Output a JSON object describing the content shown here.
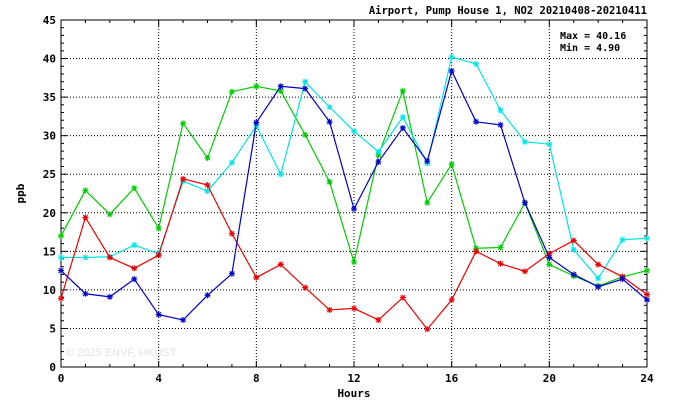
{
  "chart_data": {
    "type": "line",
    "title": "Airport, Pump House 1, NO2 20210408-20210411",
    "xlabel": "Hours",
    "ylabel": "ppb",
    "xlim": [
      0,
      24
    ],
    "ylim": [
      0,
      45
    ],
    "xticks": [
      0,
      4,
      8,
      12,
      16,
      20,
      24
    ],
    "yticks": [
      0,
      5,
      10,
      15,
      20,
      25,
      30,
      35,
      40,
      45
    ],
    "grid": true,
    "stats": {
      "max": "Max = 40.16",
      "min": "Min =  4.90"
    },
    "watermark": "© 2025  ENVF, HKUST",
    "series": [
      {
        "color": "#00cc00",
        "x": [
          0,
          1,
          2,
          3,
          4,
          5,
          6,
          7,
          8,
          9,
          10,
          11,
          12,
          13,
          14,
          15,
          16,
          17,
          18,
          19,
          20,
          21,
          22,
          23,
          24
        ],
        "values": [
          17.0,
          22.9,
          19.8,
          23.2,
          18.0,
          31.6,
          27.1,
          35.7,
          36.4,
          35.8,
          30.1,
          24.0,
          13.6,
          27.5,
          35.8,
          21.3,
          26.3,
          15.4,
          15.5,
          21.3,
          13.3,
          11.8,
          10.5,
          11.7,
          12.5
        ]
      },
      {
        "color": "#00e5e5",
        "x": [
          0,
          1,
          2,
          3,
          4,
          5,
          6,
          7,
          8,
          9,
          10,
          11,
          12,
          13,
          14,
          15,
          16,
          17,
          18,
          19,
          20,
          21,
          22,
          23,
          24
        ],
        "values": [
          14.2,
          14.2,
          14.3,
          15.8,
          14.7,
          24.1,
          22.8,
          26.5,
          31.3,
          25.0,
          37.0,
          33.7,
          30.6,
          27.9,
          32.4,
          26.4,
          40.2,
          39.3,
          33.3,
          29.2,
          28.9,
          15.2,
          11.5,
          16.5,
          16.7
        ]
      },
      {
        "color": "#ee0000",
        "x": [
          0,
          1,
          2,
          3,
          4,
          5,
          6,
          7,
          8,
          9,
          10,
          11,
          12,
          13,
          14,
          15,
          16,
          17,
          18,
          19,
          20,
          21,
          22,
          23,
          24
        ],
        "values": [
          8.9,
          19.4,
          14.2,
          12.8,
          14.5,
          24.4,
          23.6,
          17.3,
          11.6,
          13.3,
          10.3,
          7.4,
          7.6,
          6.1,
          9.0,
          4.9,
          8.7,
          15.0,
          13.4,
          12.4,
          14.7,
          16.4,
          13.3,
          11.7,
          9.4
        ]
      },
      {
        "color": "#0000cc",
        "x": [
          0,
          1,
          2,
          3,
          4,
          5,
          6,
          7,
          8,
          9,
          10,
          11,
          12,
          13,
          14,
          15,
          16,
          17,
          18,
          19,
          20,
          21,
          22,
          23,
          24
        ],
        "values": [
          12.5,
          9.5,
          9.1,
          11.4,
          6.8,
          6.1,
          9.3,
          12.1,
          31.7,
          36.4,
          36.1,
          31.8,
          20.5,
          26.6,
          31.0,
          26.7,
          38.4,
          31.8,
          31.4,
          21.3,
          14.2,
          12.0,
          10.4,
          11.4,
          8.7
        ]
      }
    ]
  }
}
